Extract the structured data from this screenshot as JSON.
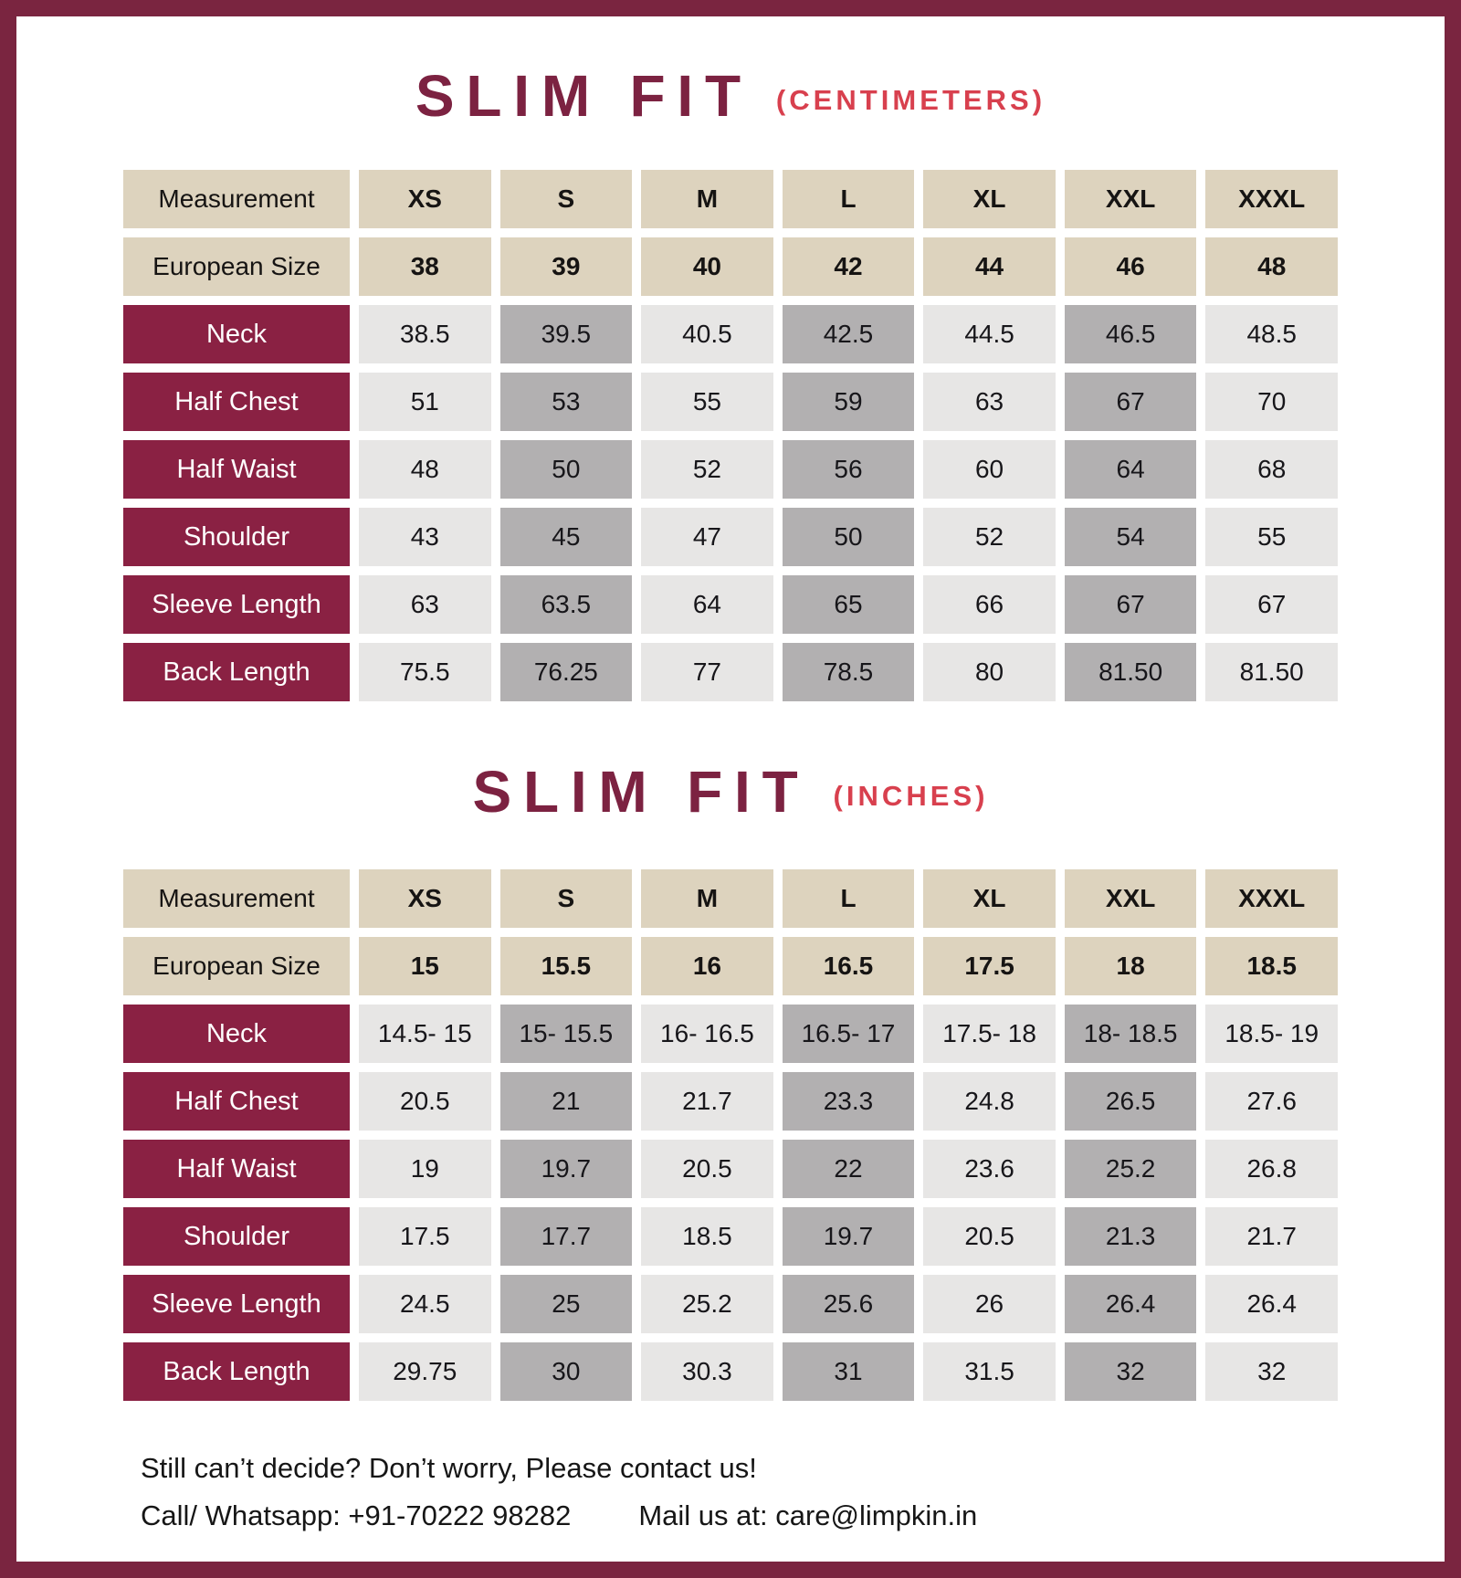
{
  "colors": {
    "frame_border": "#7A2540",
    "title_maroon": "#7C2241",
    "title_accent_red": "#D8404E",
    "header_tan": "#DDD3BE",
    "row_label_maroon": "#8A2143",
    "cell_light_gray": "#E7E6E5",
    "cell_dark_gray": "#B2B0B1"
  },
  "tables": [
    {
      "title": "SLIM FIT",
      "unit_label": "(CENTIMETERS)",
      "columns": [
        "Measurement",
        "XS",
        "S",
        "M",
        "L",
        "XL",
        "XXL",
        "XXXL"
      ],
      "european_label": "European Size",
      "european_sizes": [
        "38",
        "39",
        "40",
        "42",
        "44",
        "46",
        "48"
      ],
      "rows": [
        {
          "label": "Neck",
          "values": [
            "38.5",
            "39.5",
            "40.5",
            "42.5",
            "44.5",
            "46.5",
            "48.5"
          ]
        },
        {
          "label": "Half Chest",
          "values": [
            "51",
            "53",
            "55",
            "59",
            "63",
            "67",
            "70"
          ]
        },
        {
          "label": "Half Waist",
          "values": [
            "48",
            "50",
            "52",
            "56",
            "60",
            "64",
            "68"
          ]
        },
        {
          "label": "Shoulder",
          "values": [
            "43",
            "45",
            "47",
            "50",
            "52",
            "54",
            "55"
          ]
        },
        {
          "label": "Sleeve Length",
          "values": [
            "63",
            "63.5",
            "64",
            "65",
            "66",
            "67",
            "67"
          ]
        },
        {
          "label": "Back Length",
          "values": [
            "75.5",
            "76.25",
            "77",
            "78.5",
            "80",
            "81.50",
            "81.50"
          ]
        }
      ]
    },
    {
      "title": "SLIM FIT",
      "unit_label": "(INCHES)",
      "columns": [
        "Measurement",
        "XS",
        "S",
        "M",
        "L",
        "XL",
        "XXL",
        "XXXL"
      ],
      "european_label": "European Size",
      "european_sizes": [
        "15",
        "15.5",
        "16",
        "16.5",
        "17.5",
        "18",
        "18.5"
      ],
      "rows": [
        {
          "label": "Neck",
          "values": [
            "14.5- 15",
            "15- 15.5",
            "16- 16.5",
            "16.5- 17",
            "17.5- 18",
            "18- 18.5",
            "18.5- 19"
          ]
        },
        {
          "label": "Half Chest",
          "values": [
            "20.5",
            "21",
            "21.7",
            "23.3",
            "24.8",
            "26.5",
            "27.6"
          ]
        },
        {
          "label": "Half Waist",
          "values": [
            "19",
            "19.7",
            "20.5",
            "22",
            "23.6",
            "25.2",
            "26.8"
          ]
        },
        {
          "label": "Shoulder",
          "values": [
            "17.5",
            "17.7",
            "18.5",
            "19.7",
            "20.5",
            "21.3",
            "21.7"
          ]
        },
        {
          "label": "Sleeve Length",
          "values": [
            "24.5",
            "25",
            "25.2",
            "25.6",
            "26",
            "26.4",
            "26.4"
          ]
        },
        {
          "label": "Back Length",
          "values": [
            "29.75",
            "30",
            "30.3",
            "31",
            "31.5",
            "32",
            "32"
          ]
        }
      ]
    }
  ],
  "footer": {
    "line1": "Still can’t decide? Don’t worry, Please contact us!",
    "contact_phone": "Call/ Whatsapp: +91-70222 98282",
    "contact_email": "Mail us at: care@limpkin.in"
  }
}
